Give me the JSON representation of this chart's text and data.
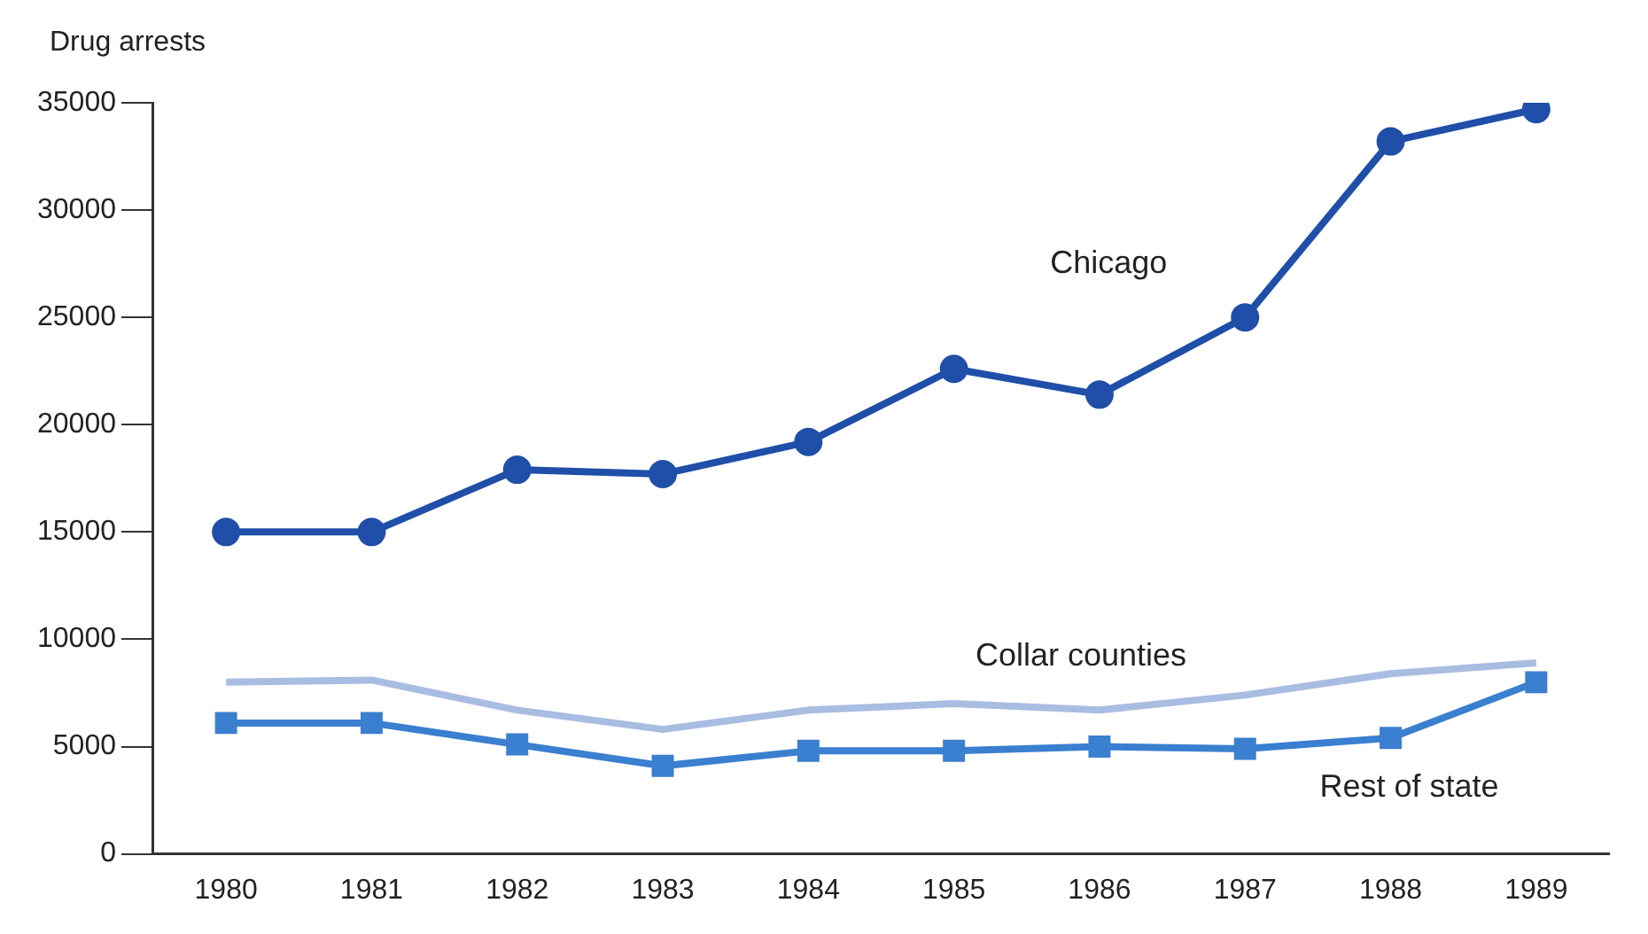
{
  "chart_data": {
    "type": "line",
    "ylabel": "Drug arrests",
    "categories": [
      "1980",
      "1981",
      "1982",
      "1983",
      "1984",
      "1985",
      "1986",
      "1987",
      "1988",
      "1989"
    ],
    "series": [
      {
        "name": "Chicago",
        "color": "#1f4fa8",
        "marker": "circle",
        "values": [
          15000,
          15000,
          17900,
          17700,
          19200,
          22600,
          21400,
          25000,
          33200,
          34700
        ]
      },
      {
        "name": "Collar counties",
        "color": "#a9bde3",
        "marker": "none",
        "values": [
          8000,
          8100,
          6700,
          5800,
          6700,
          7000,
          6700,
          7400,
          8400,
          8900
        ]
      },
      {
        "name": "Rest of state",
        "color": "#3a7fd0",
        "marker": "square",
        "values": [
          6100,
          6100,
          5100,
          4100,
          4800,
          4800,
          5000,
          4900,
          5400,
          8000
        ]
      }
    ],
    "ylim": [
      0,
      35000
    ],
    "yticks": [
      0,
      5000,
      10000,
      15000,
      20000,
      25000,
      30000,
      35000
    ],
    "grid": false,
    "legend": false
  }
}
